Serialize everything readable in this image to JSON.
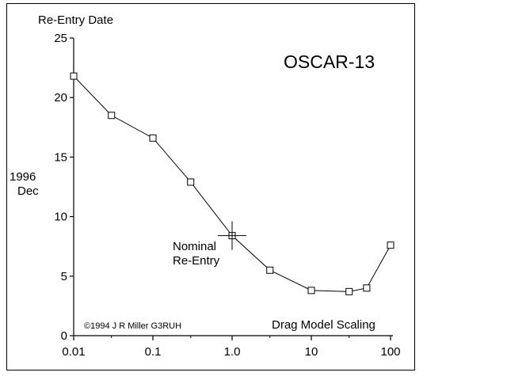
{
  "chart_data": {
    "type": "line",
    "title": "OSCAR-13",
    "ylabel_top": "Re-Entry Date",
    "ylabel_side": [
      "1996",
      "Dec"
    ],
    "xlabel": "Drag Model Scaling",
    "x_scale": "log",
    "xlim": [
      0.01,
      100
    ],
    "ylim": [
      0,
      25
    ],
    "x_ticks": [
      0.01,
      0.1,
      1.0,
      10,
      100
    ],
    "x_tick_labels": [
      "0.01",
      "0.1",
      "1.0",
      "10",
      "100"
    ],
    "y_ticks": [
      0,
      5,
      10,
      15,
      20,
      25
    ],
    "y_tick_labels": [
      "0",
      "5",
      "10",
      "15",
      "20",
      "25"
    ],
    "series": [
      {
        "x": [
          0.01,
          0.03,
          0.1,
          0.3,
          1.0,
          3.0,
          10,
          30,
          50,
          100
        ],
        "y": [
          21.8,
          18.5,
          16.6,
          12.9,
          8.4,
          5.5,
          3.8,
          3.7,
          4.0,
          7.6
        ]
      }
    ],
    "annotation": {
      "x": 1.0,
      "y": 8.4,
      "lines": [
        "Nominal",
        "Re-Entry"
      ]
    },
    "copyright": "©1994 J R Miller G3RUH"
  }
}
